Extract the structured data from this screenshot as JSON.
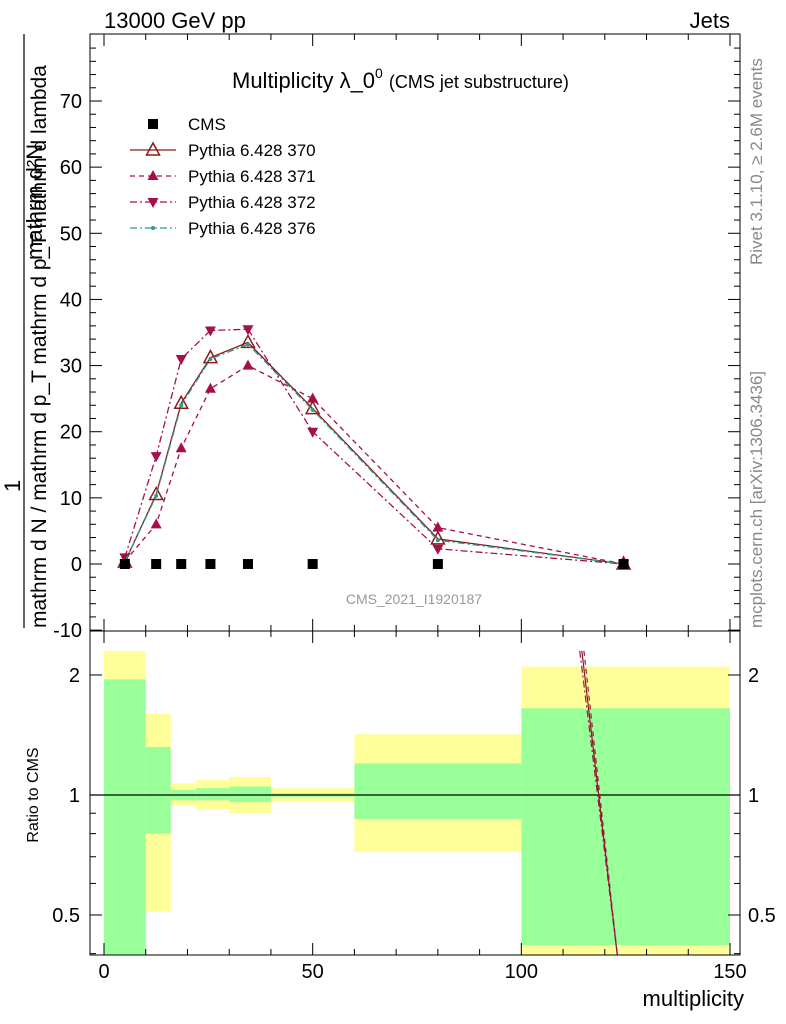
{
  "header": {
    "left": "13000 GeV pp",
    "right": "Jets"
  },
  "side_labels": {
    "rivet": "Rivet 3.1.10, ≥ 2.6M events",
    "mcplots": "mcplots.cern.ch [arXiv:1306.3436]"
  },
  "chart_data": [
    {
      "type": "line",
      "title_main": "Multiplicity λ_0",
      "title_sup": "0",
      "title_sub": "(CMS jet substructure)",
      "ylabel_num": "mathrm d²N",
      "ylabel_num_one": "1",
      "ylabel_den": "mathrm d N / mathrm d p_T mathrm d p_T mathrm d lambda",
      "ylabel_full": "1 / (mathrm d N / mathrm d p_T) · mathrm d²N / (mathrm d p_T mathrm d lambda)",
      "watermark": "CMS_2021_I1920187",
      "xlim": [
        -1,
        150
      ],
      "ylim": [
        -10,
        80
      ],
      "yticks": [
        -10,
        0,
        10,
        20,
        30,
        40,
        50,
        60,
        70
      ],
      "grid": false,
      "legend_position": "top-left",
      "legend": [
        {
          "label": "CMS",
          "marker": "square",
          "color": "#000000",
          "dash": ""
        },
        {
          "label": "Pythia 6.428 370",
          "marker": "triangle-up-open",
          "color": "#8b1a1a",
          "dash": ""
        },
        {
          "label": "Pythia 6.428 371",
          "marker": "triangle-up",
          "color": "#a50f4c",
          "dash": "5,4"
        },
        {
          "label": "Pythia 6.428 372",
          "marker": "triangle-down",
          "color": "#a50f4c",
          "dash": "7,3,2,3"
        },
        {
          "label": "Pythia 6.428 376",
          "marker": "dot",
          "color": "#2a9d8f",
          "dash": "7,3,2,3"
        }
      ],
      "x": [
        5,
        12.5,
        18.5,
        25.5,
        34.5,
        50,
        80,
        124.5
      ],
      "series": [
        {
          "name": "CMS",
          "values": [
            0,
            0,
            0,
            0,
            0,
            0,
            0,
            0
          ]
        },
        {
          "name": "Pythia 6.428 370",
          "values": [
            0.3,
            10.5,
            24.3,
            31.2,
            33.5,
            23.5,
            3.8,
            0.0
          ]
        },
        {
          "name": "Pythia 6.428 371",
          "values": [
            0.4,
            6.0,
            17.5,
            26.5,
            30.0,
            25.0,
            5.5,
            0.0
          ]
        },
        {
          "name": "Pythia 6.428 372",
          "values": [
            1.0,
            16.3,
            31.0,
            35.3,
            35.5,
            20.0,
            2.3,
            0.0
          ]
        },
        {
          "name": "Pythia 6.428 376",
          "values": [
            0.3,
            10.3,
            24.0,
            31.0,
            33.2,
            23.3,
            3.6,
            0.0
          ]
        }
      ]
    },
    {
      "type": "area",
      "ylabel": "Ratio to CMS",
      "xlabel": "multiplicity",
      "xlim": [
        -1,
        150
      ],
      "ylim": [
        0.35,
        2.3
      ],
      "yscale": "log",
      "xticks": [
        0,
        50,
        100,
        150
      ],
      "yticks": [
        0.5,
        1,
        2
      ],
      "bins": [
        {
          "xlo": 0,
          "xhi": 10,
          "green": [
            0.35,
            1.95
          ],
          "yellow": [
            0.35,
            2.3
          ]
        },
        {
          "xlo": 10,
          "xhi": 16,
          "green": [
            0.8,
            1.32
          ],
          "yellow": [
            0.51,
            1.6
          ]
        },
        {
          "xlo": 16,
          "xhi": 22,
          "green": [
            0.97,
            1.03
          ],
          "yellow": [
            0.94,
            1.07
          ]
        },
        {
          "xlo": 22,
          "xhi": 30,
          "green": [
            0.97,
            1.04
          ],
          "yellow": [
            0.92,
            1.09
          ]
        },
        {
          "xlo": 30,
          "xhi": 40,
          "green": [
            0.96,
            1.05
          ],
          "yellow": [
            0.9,
            1.11
          ]
        },
        {
          "xlo": 40,
          "xhi": 60,
          "green": [
            0.99,
            1.01
          ],
          "yellow": [
            0.96,
            1.04
          ]
        },
        {
          "xlo": 60,
          "xhi": 100,
          "green": [
            0.87,
            1.2
          ],
          "yellow": [
            0.72,
            1.42
          ]
        },
        {
          "xlo": 100,
          "xhi": 150,
          "green": [
            0.42,
            1.65
          ],
          "yellow": [
            0.35,
            2.1
          ]
        }
      ],
      "ratio_lines": [
        {
          "name": "Pythia 6.428 370",
          "points": [
            [
              114.5,
              2.3
            ],
            [
              123,
              0.35
            ]
          ]
        },
        {
          "name": "Pythia 6.428 371",
          "points": [
            [
              115,
              2.3
            ],
            [
              123,
              0.35
            ]
          ]
        },
        {
          "name": "Pythia 6.428 372",
          "points": [
            [
              114,
              2.3
            ],
            [
              123,
              0.35
            ]
          ]
        }
      ]
    }
  ]
}
